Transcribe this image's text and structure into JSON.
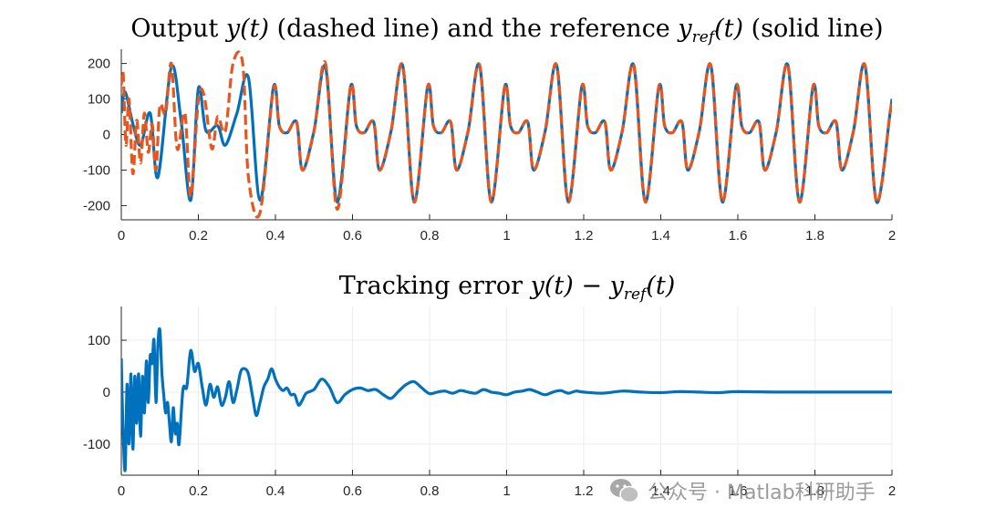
{
  "colors": {
    "reference": "#0072BD",
    "output": "#E8561E",
    "error": "#0072BD",
    "axis": "#262626",
    "grid": "#ececec"
  },
  "chart_data": [
    {
      "type": "line",
      "title": {
        "pre": "Output ",
        "y_of_t": "y(t)",
        "mid": " (dashed line) and the reference ",
        "yref": "y",
        "ref_sub": "ref",
        "paren_t": "(t)",
        "post": " (solid line)"
      },
      "xlabel": "",
      "ylabel": "",
      "xlim": [
        0,
        2
      ],
      "ylim": [
        -240,
        240
      ],
      "xticks": [
        0,
        0.2,
        0.4,
        0.6,
        0.8,
        1,
        1.2,
        1.4,
        1.6,
        1.8,
        2
      ],
      "xticklabels": [
        "0",
        "0.2",
        "0.4",
        "0.6",
        "0.8",
        "1",
        "1.2",
        "1.4",
        "1.6",
        "1.8",
        "2"
      ],
      "yticks": [
        200,
        100,
        0,
        -100,
        -200
      ],
      "yticklabels": [
        "200",
        "100",
        "0",
        "-100",
        "-200"
      ],
      "grid": false,
      "series": [
        {
          "style": "solid",
          "color": "#0072BD",
          "x": [
            0,
            0.01,
            0.03,
            0.05,
            0.075,
            0.095,
            0.13,
            0.155,
            0.18,
            0.2,
            0.22,
            0.25,
            0.27,
            0.3,
            0.33,
            0.36,
            0.395,
            0.41,
            0.43,
            0.455,
            0.47,
            0.5,
            0.53,
            0.56,
            0.595,
            0.61,
            0.63,
            0.655,
            0.67,
            0.7,
            0.73,
            0.76,
            0.795,
            0.81,
            0.83,
            0.855,
            0.87,
            0.9,
            0.93,
            0.96,
            0.995,
            1.01,
            1.03,
            1.055,
            1.07,
            1.1,
            1.13,
            1.16,
            1.195,
            1.21,
            1.23,
            1.255,
            1.27,
            1.3,
            1.33,
            1.36,
            1.395,
            1.41,
            1.43,
            1.455,
            1.47,
            1.5,
            1.53,
            1.56,
            1.595,
            1.61,
            1.63,
            1.655,
            1.67,
            1.7,
            1.73,
            1.76,
            1.795,
            1.81,
            1.83,
            1.855,
            1.87,
            1.9,
            1.93,
            1.96,
            1.995,
            2.0
          ],
          "y": [
            60,
            120,
            30,
            -30,
            60,
            -120,
            190,
            40,
            -185,
            130,
            10,
            25,
            -30,
            60,
            160,
            -185,
            135,
            25,
            5,
            35,
            -100,
            10,
            190,
            -190,
            135,
            25,
            5,
            35,
            -100,
            10,
            195,
            -190,
            135,
            25,
            5,
            35,
            -100,
            10,
            195,
            -190,
            135,
            25,
            5,
            35,
            -100,
            10,
            195,
            -190,
            135,
            25,
            5,
            35,
            -100,
            10,
            195,
            -190,
            135,
            25,
            5,
            35,
            -100,
            10,
            195,
            -190,
            135,
            25,
            5,
            35,
            -100,
            10,
            195,
            -190,
            135,
            25,
            5,
            35,
            -100,
            10,
            195,
            -190,
            60,
            100
          ]
        },
        {
          "style": "dashed",
          "color": "#E8561E",
          "x": [
            0,
            0.005,
            0.012,
            0.02,
            0.03,
            0.04,
            0.05,
            0.06,
            0.07,
            0.08,
            0.09,
            0.1,
            0.115,
            0.13,
            0.145,
            0.165,
            0.18,
            0.2,
            0.215,
            0.235,
            0.25,
            0.27,
            0.29,
            0.315,
            0.33,
            0.36,
            0.395,
            0.41,
            0.43,
            0.455,
            0.47,
            0.5,
            0.53,
            0.56,
            0.595,
            0.61,
            0.63,
            0.655,
            0.67,
            0.7,
            0.73,
            0.76,
            0.795,
            0.81,
            0.83,
            0.855,
            0.87,
            0.9,
            0.93,
            0.96,
            0.995,
            1.01,
            1.03,
            1.055,
            1.07,
            1.1,
            1.13,
            1.16,
            1.195,
            1.21,
            1.23,
            1.255,
            1.27,
            1.3,
            1.33,
            1.36,
            1.395,
            1.41,
            1.43,
            1.455,
            1.47,
            1.5,
            1.53,
            1.56,
            1.595,
            1.61,
            1.63,
            1.655,
            1.67,
            1.7,
            1.73,
            1.76,
            1.795,
            1.81,
            1.83,
            1.855,
            1.87,
            1.9,
            1.93,
            1.96,
            1.995,
            2.0
          ],
          "y": [
            140,
            170,
            -30,
            100,
            -110,
            40,
            -80,
            60,
            -50,
            30,
            -100,
            80,
            60,
            200,
            -40,
            60,
            -175,
            95,
            110,
            -40,
            50,
            10,
            200,
            200,
            -120,
            -220,
            130,
            25,
            5,
            35,
            -100,
            10,
            200,
            -210,
            135,
            25,
            5,
            35,
            -100,
            10,
            195,
            -190,
            135,
            25,
            5,
            35,
            -100,
            10,
            195,
            -190,
            135,
            25,
            5,
            35,
            -100,
            10,
            195,
            -190,
            135,
            25,
            5,
            35,
            -100,
            10,
            195,
            -190,
            135,
            25,
            5,
            35,
            -100,
            10,
            195,
            -190,
            135,
            25,
            5,
            35,
            -100,
            10,
            195,
            -190,
            135,
            25,
            5,
            35,
            -100,
            10,
            195,
            -190,
            60,
            100
          ]
        }
      ]
    },
    {
      "type": "line",
      "title": {
        "pre": "Tracking error ",
        "y_of_t": "y(t)",
        "minus": " − ",
        "yref": "y",
        "ref_sub": "ref",
        "paren_t": "(t)"
      },
      "xlabel": "",
      "ylabel": "",
      "xlim": [
        0,
        2
      ],
      "ylim": [
        -160,
        165
      ],
      "xticks": [
        0,
        0.2,
        0.4,
        0.6,
        0.8,
        1,
        1.2,
        1.4,
        1.6,
        1.8,
        2
      ],
      "xticklabels": [
        "0",
        "0.2",
        "0.4",
        "0.6",
        "0.8",
        "1",
        "1.2",
        "1.4",
        "1.6",
        "1.8",
        "2"
      ],
      "yticks": [
        100,
        0,
        -100
      ],
      "yticklabels": [
        "100",
        "0",
        "-100"
      ],
      "grid": true,
      "series": [
        {
          "style": "solid",
          "color": "#0072BD",
          "x": [
            0,
            0.004,
            0.01,
            0.015,
            0.02,
            0.025,
            0.03,
            0.035,
            0.04,
            0.045,
            0.05,
            0.055,
            0.06,
            0.065,
            0.07,
            0.075,
            0.08,
            0.085,
            0.09,
            0.095,
            0.1,
            0.105,
            0.11,
            0.115,
            0.12,
            0.125,
            0.13,
            0.135,
            0.14,
            0.145,
            0.15,
            0.16,
            0.17,
            0.18,
            0.19,
            0.2,
            0.21,
            0.22,
            0.23,
            0.24,
            0.25,
            0.26,
            0.27,
            0.28,
            0.29,
            0.3,
            0.31,
            0.32,
            0.33,
            0.34,
            0.35,
            0.36,
            0.37,
            0.38,
            0.39,
            0.4,
            0.41,
            0.42,
            0.43,
            0.44,
            0.45,
            0.46,
            0.47,
            0.48,
            0.5,
            0.52,
            0.54,
            0.56,
            0.58,
            0.6,
            0.62,
            0.64,
            0.66,
            0.68,
            0.7,
            0.72,
            0.74,
            0.76,
            0.78,
            0.8,
            0.82,
            0.84,
            0.86,
            0.88,
            0.9,
            0.92,
            0.94,
            0.96,
            0.98,
            1.0,
            1.02,
            1.04,
            1.06,
            1.08,
            1.1,
            1.12,
            1.14,
            1.16,
            1.18,
            1.2,
            1.25,
            1.3,
            1.35,
            1.4,
            1.45,
            1.5,
            1.55,
            1.6,
            1.7,
            1.8,
            1.9,
            2.0
          ],
          "y": [
            65,
            -60,
            -150,
            15,
            -100,
            35,
            -110,
            30,
            -60,
            35,
            -85,
            30,
            -40,
            60,
            -20,
            70,
            55,
            100,
            -20,
            90,
            120,
            40,
            -5,
            -40,
            -20,
            -60,
            -95,
            -30,
            -80,
            -60,
            -100,
            5,
            10,
            80,
            40,
            55,
            10,
            -25,
            15,
            -10,
            10,
            -25,
            -10,
            20,
            -20,
            5,
            40,
            45,
            35,
            -5,
            -45,
            -20,
            10,
            25,
            45,
            25,
            10,
            3,
            8,
            -5,
            -5,
            -25,
            -15,
            -2,
            5,
            25,
            10,
            -20,
            -5,
            5,
            8,
            3,
            5,
            -5,
            -12,
            2,
            15,
            20,
            8,
            -3,
            0,
            2,
            -2,
            3,
            0,
            -2,
            5,
            0,
            -2,
            -5,
            0,
            2,
            5,
            0,
            -5,
            0,
            3,
            -2,
            2,
            0,
            -2,
            2,
            0,
            -1,
            1,
            0,
            -1,
            1,
            0,
            0,
            0,
            0
          ]
        }
      ]
    }
  ],
  "watermark": {
    "text": "公众号 · Matlab科研助手",
    "icon": "wechat-icon"
  }
}
